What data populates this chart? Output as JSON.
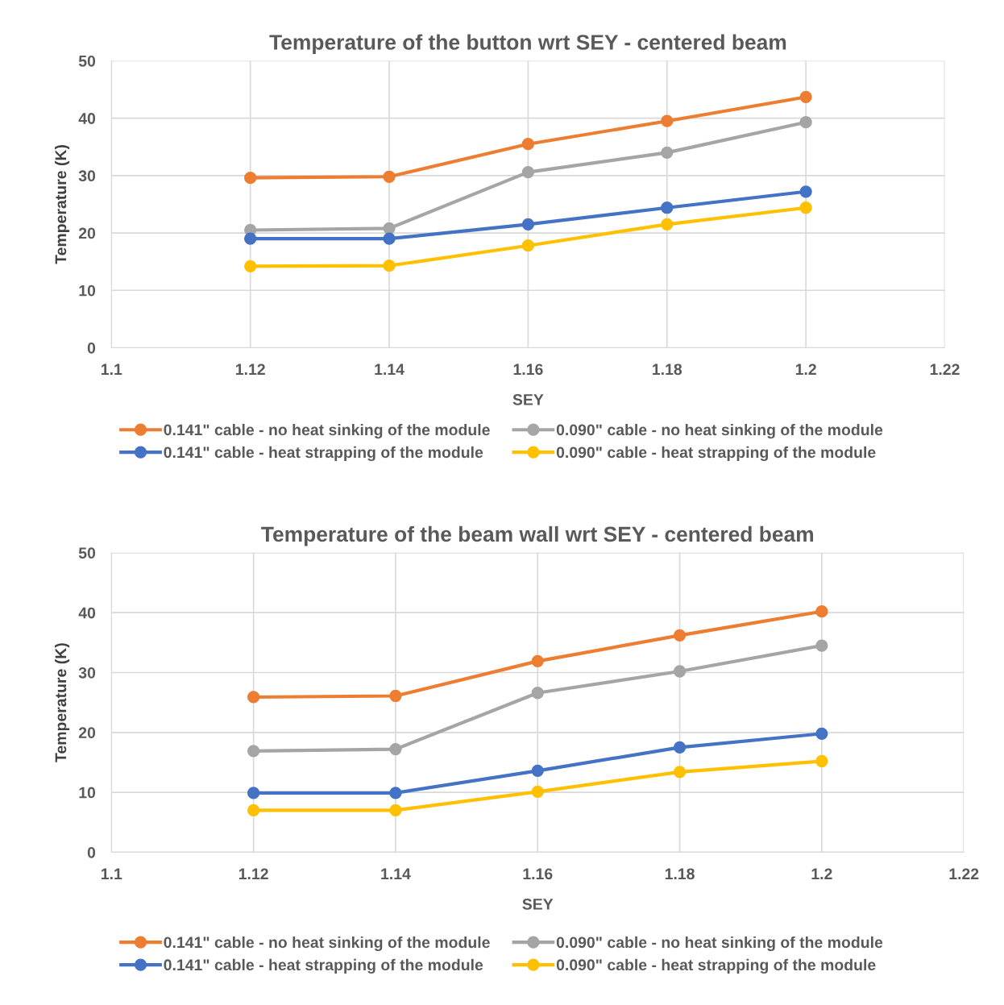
{
  "chart_data": [
    {
      "type": "line",
      "title": "Temperature of the button wrt SEY - centered beam",
      "xlabel": "SEY",
      "ylabel": "Temperature (K)",
      "x": [
        1.12,
        1.14,
        1.16,
        1.18,
        1.2
      ],
      "xlim": [
        1.1,
        1.22
      ],
      "xticks": [
        1.1,
        1.12,
        1.14,
        1.16,
        1.18,
        1.2,
        1.22
      ],
      "ylim": [
        0,
        50
      ],
      "yticks": [
        0,
        10,
        20,
        30,
        40,
        50
      ],
      "grid": true,
      "legend": "bottom",
      "marker": "circle",
      "series": [
        {
          "name": "0.141\" cable - no heat sinking of the module",
          "color": "#ed7d31",
          "values": [
            29.6,
            29.8,
            35.5,
            39.5,
            43.7
          ]
        },
        {
          "name": "0.090\" cable - no heat sinking of the module",
          "color": "#a5a5a5",
          "values": [
            20.5,
            20.8,
            30.6,
            34.0,
            39.3
          ]
        },
        {
          "name": "0.141\" cable - heat strapping of the module",
          "color": "#4472c4",
          "values": [
            19.0,
            19.0,
            21.5,
            24.4,
            27.2
          ]
        },
        {
          "name": "0.090\" cable - heat strapping of the module",
          "color": "#ffc000",
          "values": [
            14.2,
            14.3,
            17.8,
            21.5,
            24.4
          ]
        }
      ]
    },
    {
      "type": "line",
      "title": "Temperature of the beam wall wrt SEY - centered beam",
      "xlabel": "SEY",
      "ylabel": "Temperature (K)",
      "x": [
        1.12,
        1.14,
        1.16,
        1.18,
        1.2
      ],
      "xlim": [
        1.1,
        1.22
      ],
      "xticks": [
        1.1,
        1.12,
        1.14,
        1.16,
        1.18,
        1.2,
        1.22
      ],
      "ylim": [
        0,
        50
      ],
      "yticks": [
        0,
        10,
        20,
        30,
        40,
        50
      ],
      "grid": true,
      "legend": "bottom",
      "marker": "circle",
      "series": [
        {
          "name": "0.141\" cable - no heat sinking of the module",
          "color": "#ed7d31",
          "values": [
            25.9,
            26.1,
            31.9,
            36.2,
            40.2
          ]
        },
        {
          "name": "0.090\" cable - no heat sinking of the module",
          "color": "#a5a5a5",
          "values": [
            16.9,
            17.2,
            26.6,
            30.2,
            34.5
          ]
        },
        {
          "name": "0.141\" cable - heat strapping of the module",
          "color": "#4472c4",
          "values": [
            9.9,
            9.9,
            13.6,
            17.5,
            19.8
          ]
        },
        {
          "name": "0.090\" cable - heat strapping of the module",
          "color": "#ffc000",
          "values": [
            7.0,
            7.0,
            10.1,
            13.4,
            15.2
          ]
        }
      ]
    }
  ]
}
